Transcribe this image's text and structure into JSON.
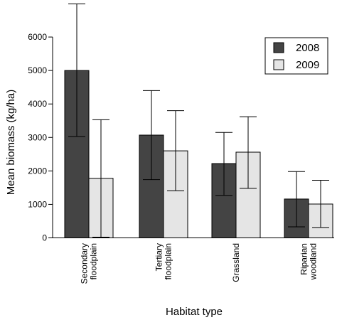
{
  "chart_data": {
    "type": "bar",
    "title": "",
    "xlabel": "Habitat type",
    "ylabel": "Mean biomass (kg/ha)",
    "ylim": [
      0,
      7000
    ],
    "yticks": [
      0,
      1000,
      2000,
      3000,
      4000,
      5000,
      6000
    ],
    "categories": [
      [
        "Secondary",
        "floodplain"
      ],
      [
        "Tertiary",
        "floodplain"
      ],
      [
        "Grassland"
      ],
      [
        "Riparian",
        "woodland"
      ]
    ],
    "series": [
      {
        "name": "2008",
        "color": "#444444",
        "values": [
          5000,
          3070,
          2220,
          1160
        ],
        "error_low": [
          3030,
          1740,
          1270,
          330
        ],
        "error_high": [
          6990,
          4400,
          3150,
          1980
        ]
      },
      {
        "name": "2009",
        "color": "#e5e5e5",
        "values": [
          1780,
          2600,
          2560,
          1010
        ],
        "error_low": [
          20,
          1410,
          1480,
          310
        ],
        "error_high": [
          3530,
          3800,
          3620,
          1720
        ]
      }
    ],
    "legend": {
      "position": "top-right"
    },
    "grid": false
  }
}
